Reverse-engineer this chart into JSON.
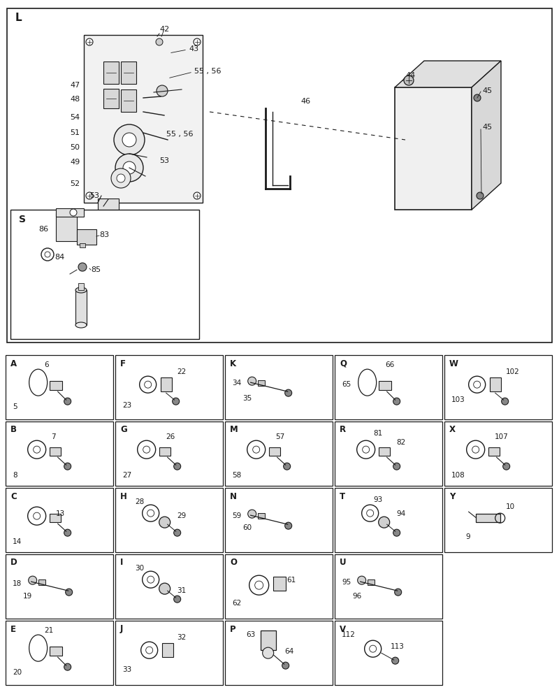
{
  "fig_width": 8.0,
  "fig_height": 10.0,
  "bg_color": "#ffffff",
  "line_color": "#1a1a1a",
  "text_color": "#1a1a1a",
  "small_boxes": [
    {
      "label": "A",
      "nums": [
        "5",
        "6"
      ],
      "col": 0,
      "row": 0
    },
    {
      "label": "F",
      "nums": [
        "23",
        "22"
      ],
      "col": 1,
      "row": 0
    },
    {
      "label": "K",
      "nums": [
        "34",
        "35"
      ],
      "col": 2,
      "row": 0
    },
    {
      "label": "Q",
      "nums": [
        "65",
        "66"
      ],
      "col": 3,
      "row": 0
    },
    {
      "label": "W",
      "nums": [
        "103",
        "102"
      ],
      "col": 4,
      "row": 0
    },
    {
      "label": "B",
      "nums": [
        "8",
        "7"
      ],
      "col": 0,
      "row": 1
    },
    {
      "label": "G",
      "nums": [
        "27",
        "26"
      ],
      "col": 1,
      "row": 1
    },
    {
      "label": "M",
      "nums": [
        "58",
        "57"
      ],
      "col": 2,
      "row": 1
    },
    {
      "label": "R",
      "nums": [
        "81",
        "82"
      ],
      "col": 3,
      "row": 1
    },
    {
      "label": "X",
      "nums": [
        "108",
        "107"
      ],
      "col": 4,
      "row": 1
    },
    {
      "label": "C",
      "nums": [
        "14",
        "13"
      ],
      "col": 0,
      "row": 2
    },
    {
      "label": "H",
      "nums": [
        "28",
        "29"
      ],
      "col": 1,
      "row": 2
    },
    {
      "label": "N",
      "nums": [
        "59",
        "60"
      ],
      "col": 2,
      "row": 2
    },
    {
      "label": "T",
      "nums": [
        "93",
        "94"
      ],
      "col": 3,
      "row": 2
    },
    {
      "label": "Y",
      "nums": [
        "9",
        "10"
      ],
      "col": 4,
      "row": 2
    },
    {
      "label": "D",
      "nums": [
        "18",
        "19"
      ],
      "col": 0,
      "row": 3
    },
    {
      "label": "I",
      "nums": [
        "30",
        "31"
      ],
      "col": 1,
      "row": 3
    },
    {
      "label": "O",
      "nums": [
        "62",
        "61"
      ],
      "col": 2,
      "row": 3
    },
    {
      "label": "U",
      "nums": [
        "95",
        "96"
      ],
      "col": 3,
      "row": 3
    },
    {
      "label": "E",
      "nums": [
        "20",
        "21"
      ],
      "col": 0,
      "row": 4
    },
    {
      "label": "J",
      "nums": [
        "33",
        "32"
      ],
      "col": 1,
      "row": 4
    },
    {
      "label": "P",
      "nums": [
        "63",
        "64"
      ],
      "col": 2,
      "row": 4
    },
    {
      "label": "V",
      "nums": [
        "112",
        "113"
      ],
      "col": 3,
      "row": 4
    }
  ]
}
